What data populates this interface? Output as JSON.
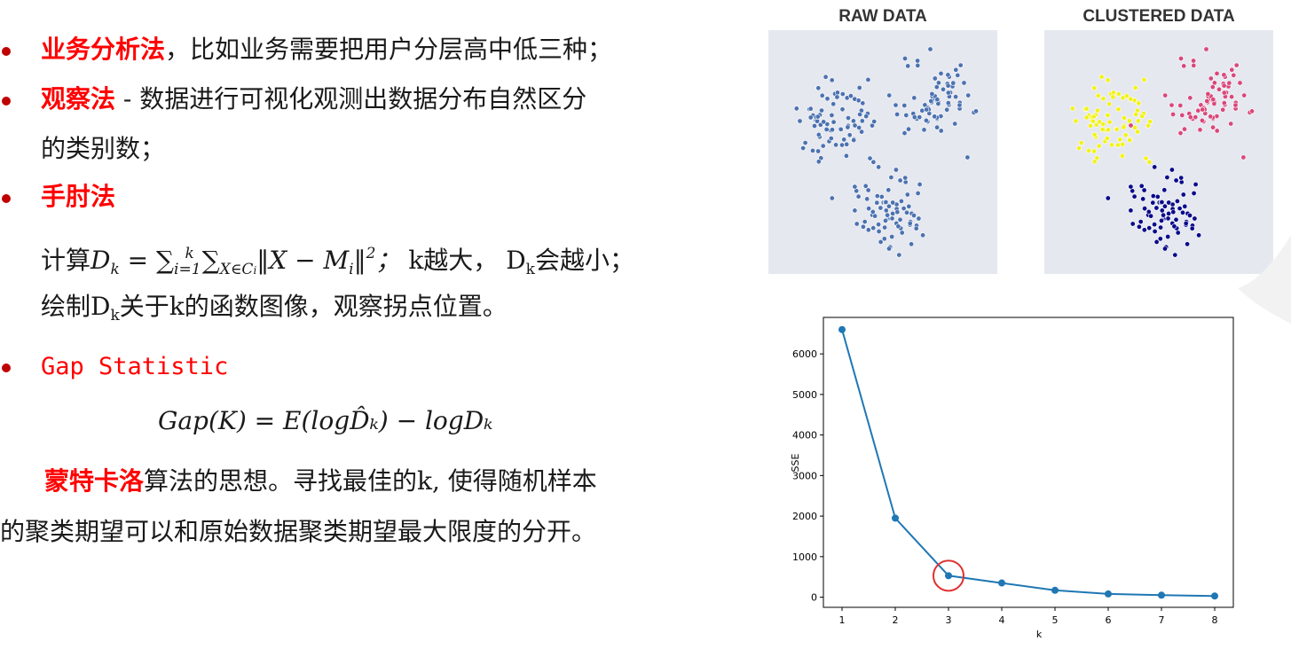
{
  "bullets": {
    "b1_red": "业务分析法",
    "b1_rest": "，比如业务需要把用户分层高中低三种；",
    "b2_red": "观察法",
    "b2_rest": " - 数据进行可视化观测出数据分布自然区分",
    "b2_line2": "的类别数；",
    "b3_red": "手肘法",
    "b3_calc_prefix": "计算",
    "b3_calc_mid": "k越大， ",
    "b3_calc_tail": "会越小；",
    "b3_line2_pre": "绘制",
    "b3_line2_post": "关于k的函数图像，观察拐点位置。",
    "b4_red": "Gap Statistic",
    "gap_formula": "Gap(K) = E(logD̂ₖ) − logDₖ",
    "para_red": "蒙特卡洛",
    "para_rest": "算法的思想。寻找最佳的k, 使得随机样本",
    "para_line2": "的聚类期望可以和原始数据聚类期望最大限度的分开。"
  },
  "panels": {
    "raw_title": "RAW DATA",
    "clustered_title": "CLUSTERED DATA"
  },
  "colors": {
    "raw": "#4c72b0",
    "cluster_yellow": "#f2f21a",
    "cluster_pink": "#d9487a",
    "cluster_navy": "#0a0a8a",
    "line": "#1f77b4",
    "circle": "#e03030"
  },
  "chart_data": {
    "type": "line",
    "x": [
      1,
      2,
      3,
      4,
      5,
      6,
      7,
      8
    ],
    "values": [
      6600,
      1950,
      530,
      350,
      170,
      80,
      50,
      30
    ],
    "xlabel": "k",
    "ylabel": "SSE",
    "yticks": [
      0,
      1000,
      2000,
      3000,
      4000,
      5000,
      6000
    ],
    "xticks": [
      1,
      2,
      3,
      4,
      5,
      6,
      7,
      8
    ],
    "ylim": [
      -250,
      6900
    ],
    "xlim": [
      0.65,
      8.35
    ],
    "highlight_k": 3
  }
}
